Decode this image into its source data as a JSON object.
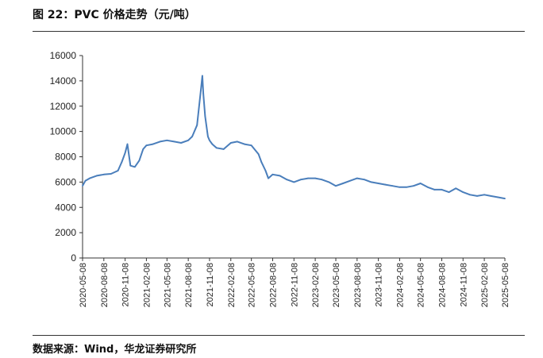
{
  "title": "图 22：PVC 价格走势（元/吨）",
  "source": "数据来源：Wind，华龙证券研究所",
  "colors": {
    "line": "#4a7ebb",
    "axis": "#333333"
  },
  "chart_data": {
    "type": "line",
    "title": "",
    "xlabel": "",
    "ylabel": "",
    "ylim": [
      0,
      16000
    ],
    "yticks": [
      "0",
      "2000",
      "4000",
      "6000",
      "8000",
      "10000",
      "12000",
      "14000",
      "16000"
    ],
    "xticks": [
      "2020-05-08",
      "2020-08-08",
      "2020-11-08",
      "2021-02-08",
      "2021-05-08",
      "2021-08-08",
      "2021-11-08",
      "2022-02-08",
      "2022-05-08",
      "2022-08-08",
      "2022-11-08",
      "2023-02-08",
      "2023-05-08",
      "2023-08-08",
      "2023-11-08",
      "2024-02-08",
      "2024-05-08",
      "2024-08-08",
      "2024-11-08",
      "2025-02-08",
      "2025-05-08"
    ],
    "grid": false,
    "series": [
      {
        "x": [
          "2020-05-08",
          "2020-05-20",
          "2020-06-08",
          "2020-07-08",
          "2020-08-08",
          "2020-09-08",
          "2020-10-08",
          "2020-10-25",
          "2020-11-08",
          "2020-11-18",
          "2020-12-01",
          "2020-12-20",
          "2021-01-08",
          "2021-01-25",
          "2021-02-08",
          "2021-03-08",
          "2021-04-08",
          "2021-05-08",
          "2021-06-08",
          "2021-07-08",
          "2021-08-08",
          "2021-08-25",
          "2021-09-15",
          "2021-10-01",
          "2021-10-08",
          "2021-10-12",
          "2021-10-20",
          "2021-11-01",
          "2021-11-08",
          "2021-11-20",
          "2021-12-08",
          "2022-01-08",
          "2022-02-08",
          "2022-03-08",
          "2022-04-08",
          "2022-05-08",
          "2022-06-08",
          "2022-06-20",
          "2022-07-08",
          "2022-07-20",
          "2022-08-08",
          "2022-09-08",
          "2022-10-08",
          "2022-11-08",
          "2022-12-08",
          "2023-01-08",
          "2023-02-08",
          "2023-03-08",
          "2023-04-08",
          "2023-05-08",
          "2023-06-08",
          "2023-07-08",
          "2023-08-08",
          "2023-09-08",
          "2023-10-08",
          "2023-11-08",
          "2023-12-08",
          "2024-01-08",
          "2024-02-08",
          "2024-03-08",
          "2024-04-08",
          "2024-05-08",
          "2024-06-08",
          "2024-07-08",
          "2024-08-08",
          "2024-09-08",
          "2024-10-08",
          "2024-11-08",
          "2024-12-08",
          "2025-01-08",
          "2025-02-08",
          "2025-03-08",
          "2025-04-08",
          "2025-05-08"
        ],
        "values": [
          5700,
          6100,
          6300,
          6500,
          6600,
          6650,
          6900,
          7600,
          8300,
          9000,
          7300,
          7200,
          7700,
          8600,
          8900,
          9000,
          9200,
          9300,
          9200,
          9100,
          9300,
          9600,
          10500,
          13200,
          14400,
          13000,
          11200,
          9600,
          9300,
          9000,
          8700,
          8600,
          9100,
          9200,
          9000,
          8900,
          8200,
          7600,
          6900,
          6300,
          6600,
          6500,
          6200,
          6000,
          6200,
          6300,
          6300,
          6200,
          6000,
          5700,
          5900,
          6100,
          6300,
          6200,
          6000,
          5900,
          5800,
          5700,
          5600,
          5600,
          5700,
          5900,
          5600,
          5400,
          5400,
          5200,
          5500,
          5200,
          5000,
          4900,
          5000,
          4900,
          4800,
          4700
        ]
      }
    ]
  }
}
